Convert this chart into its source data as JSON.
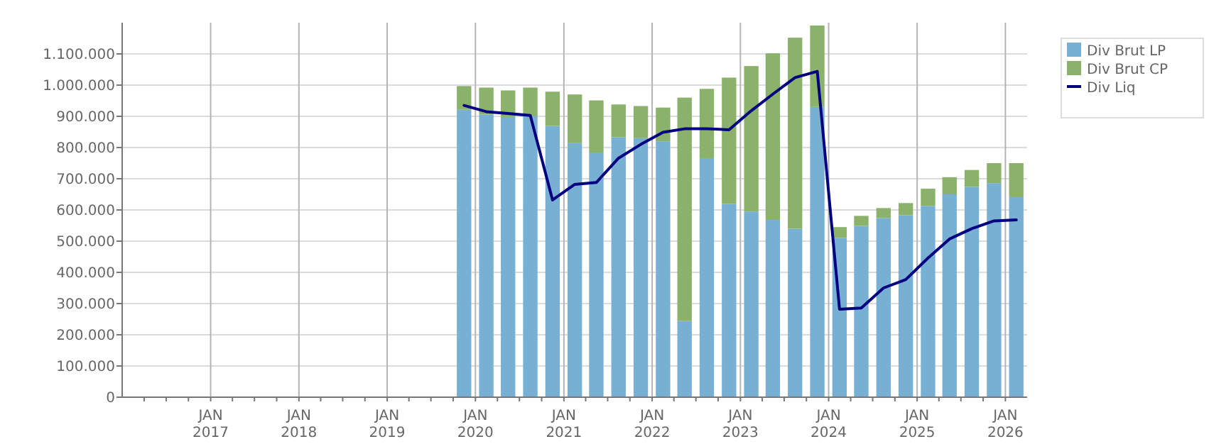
{
  "chart_data": {
    "type": "bar",
    "stacked": true,
    "grid": true,
    "legend": "top right",
    "x": [
      "2019-11-15",
      "2020-02-15",
      "2020-05-15",
      "2020-08-15",
      "2020-11-15",
      "2021-02-15",
      "2021-05-15",
      "2021-08-15",
      "2021-11-15",
      "2022-02-15",
      "2022-05-15",
      "2022-08-15",
      "2022-11-15",
      "2023-02-15",
      "2023-05-15",
      "2023-08-15",
      "2023-11-15",
      "2024-02-15",
      "2024-05-15",
      "2024-08-15",
      "2024-11-15",
      "2025-02-15",
      "2025-05-15",
      "2025-08-15",
      "2025-11-15",
      "2026-02-15"
    ],
    "series": [
      {
        "name": "Div Brut LP",
        "color": "#78b0d4",
        "values": [
          921000,
          906000,
          898000,
          900000,
          869000,
          814000,
          784000,
          833000,
          830000,
          820000,
          244000,
          766000,
          619000,
          595000,
          568000,
          540000,
          930000,
          510000,
          549000,
          574000,
          583000,
          613000,
          650000,
          674000,
          686000,
          641000
        ]
      },
      {
        "name": "Div Brut CP",
        "color": "#8ab26a",
        "values": [
          76000,
          86000,
          85000,
          92000,
          110000,
          156000,
          167000,
          105000,
          103000,
          108000,
          716000,
          222000,
          405000,
          466000,
          534000,
          612000,
          261000,
          35000,
          32000,
          32000,
          39000,
          55000,
          55000,
          54000,
          64000,
          109000
        ]
      },
      {
        "name": "Div Liq",
        "type": "line",
        "color": "#000080",
        "values": [
          935000,
          915000,
          909000,
          903000,
          632000,
          682000,
          688000,
          766000,
          810000,
          849000,
          860000,
          860000,
          857000,
          918000,
          971000,
          1024000,
          1044000,
          282000,
          286000,
          350000,
          377000,
          446000,
          507000,
          540000,
          565000,
          568000
        ]
      }
    ],
    "ylim": [
      0,
      1200000
    ],
    "yticks": [
      0,
      {
        "value": 100000,
        "label": "100.000"
      },
      {
        "value": 200000,
        "label": "200.000"
      },
      {
        "value": 300000,
        "label": "300.000"
      },
      {
        "value": 400000,
        "label": "400.000"
      },
      {
        "value": 500000,
        "label": "500.000"
      },
      {
        "value": 600000,
        "label": "600.000"
      },
      {
        "value": 700000,
        "label": "700.000"
      },
      {
        "value": 800000,
        "label": "800.000"
      },
      {
        "value": 900000,
        "label": "900.000"
      },
      {
        "value": 1000000,
        "label": "1.000.000"
      },
      {
        "value": 1100000,
        "label": "1.100.000"
      }
    ],
    "xlim": [
      "2016-01",
      "2026-04"
    ],
    "xticks": [
      {
        "value": "2016-04",
        "label": null
      },
      {
        "value": "2016-07",
        "label": null
      },
      {
        "value": "2016-10",
        "label": null
      },
      {
        "value": "2017-01",
        "label": "JAN\n2017"
      },
      {
        "value": "2017-04",
        "label": null
      },
      {
        "value": "2017-07",
        "label": null
      },
      {
        "value": "2017-10",
        "label": null
      },
      {
        "value": "2018-01",
        "label": "JAN\n2018"
      },
      {
        "value": "2018-04",
        "label": null
      },
      {
        "value": "2018-07",
        "label": null
      },
      {
        "value": "2018-10",
        "label": null
      },
      {
        "value": "2019-01",
        "label": "JAN\n2019"
      },
      {
        "value": "2019-04",
        "label": null
      },
      {
        "value": "2019-07",
        "label": null
      },
      {
        "value": "2019-10",
        "label": null
      },
      {
        "value": "2020-01",
        "label": "JAN\n2020"
      },
      {
        "value": "2020-04",
        "label": null
      },
      {
        "value": "2020-07",
        "label": null
      },
      {
        "value": "2020-10",
        "label": null
      },
      {
        "value": "2021-01",
        "label": "JAN\n2021"
      },
      {
        "value": "2021-04",
        "label": null
      },
      {
        "value": "2021-07",
        "label": null
      },
      {
        "value": "2021-10",
        "label": null
      },
      {
        "value": "2022-01",
        "label": "JAN\n2022"
      },
      {
        "value": "2022-04",
        "label": null
      },
      {
        "value": "2022-07",
        "label": null
      },
      {
        "value": "2022-10",
        "label": null
      },
      {
        "value": "2023-01",
        "label": "JAN\n2023"
      },
      {
        "value": "2023-04",
        "label": null
      },
      {
        "value": "2023-07",
        "label": null
      },
      {
        "value": "2023-10",
        "label": null
      },
      {
        "value": "2024-01",
        "label": "JAN\n2024"
      },
      {
        "value": "2024-04",
        "label": null
      },
      {
        "value": "2024-07",
        "label": null
      },
      {
        "value": "2024-10",
        "label": null
      },
      {
        "value": "2025-01",
        "label": "JAN\n2025"
      },
      {
        "value": "2025-04",
        "label": null
      },
      {
        "value": "2025-07",
        "label": null
      },
      {
        "value": "2025-10",
        "label": null
      },
      {
        "value": "2026-01",
        "label": "JAN\n2026"
      }
    ]
  }
}
